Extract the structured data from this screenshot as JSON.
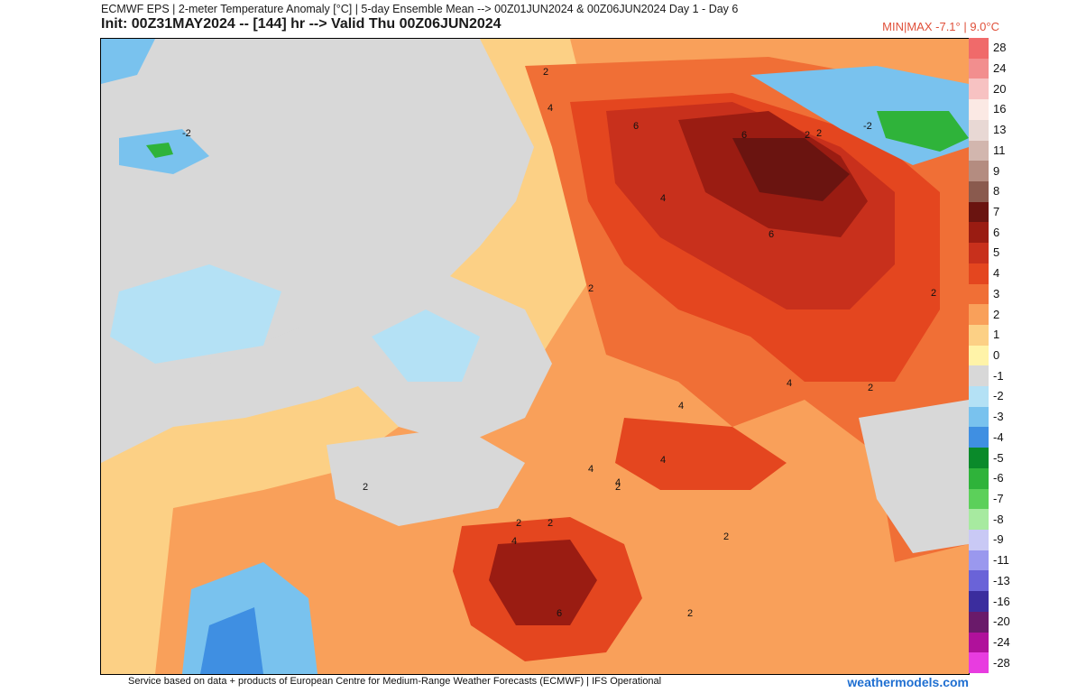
{
  "header": {
    "line1": "ECMWF EPS | 2-meter Temperature Anomaly [°C] | 5-day Ensemble Mean --> 00Z01JUN2024 & 00Z06JUN2024   Day 1 - Day 6",
    "line2": "Init: 00Z31MAY2024 -- [144] hr --> Valid Thu 00Z06JUN2024",
    "minmax": "MIN|MAX -7.1° | 9.0°C"
  },
  "legend": {
    "labels": [
      "28",
      "24",
      "20",
      "16",
      "13",
      "11",
      "9",
      "8",
      "7",
      "6",
      "5",
      "4",
      "3",
      "2",
      "1",
      "0",
      "-1",
      "-2",
      "-3",
      "-4",
      "-5",
      "-6",
      "-7",
      "-8",
      "-9",
      "-11",
      "-13",
      "-16",
      "-20",
      "-24",
      "-28"
    ],
    "colors": [
      "#f06a6a",
      "#f28e8e",
      "#f7c2c2",
      "#fbe9e4",
      "#e8d8d4",
      "#d2b6ae",
      "#b48c80",
      "#8a5a4e",
      "#6a1410",
      "#9a1c12",
      "#c8301c",
      "#e4461f",
      "#f06f36",
      "#f9a05a",
      "#fcd085",
      "#fff3a8",
      "#d8d8d8",
      "#b4e1f5",
      "#79c2ee",
      "#3f8fe2",
      "#0a8a2a",
      "#2fb33a",
      "#5cd05a",
      "#a7eaa0",
      "#c9c9f5",
      "#9a98ee",
      "#6a63d8",
      "#3b2d9e",
      "#6a1a6a",
      "#b0119b",
      "#e83ce0"
    ]
  },
  "map": {
    "contour_labels": [
      "2",
      "4",
      "6",
      "6",
      "4",
      "2",
      "4",
      "6",
      "-2",
      "2",
      "2",
      "4",
      "2",
      "2",
      "4",
      "2",
      "4",
      "6",
      "-2",
      "2",
      "2",
      "4",
      "2",
      "2",
      "4",
      "2"
    ]
  },
  "footer": {
    "credit": "Service based on data + products of European Centre for Medium-Range Weather Forecasts (ECMWF) | IFS Operational",
    "brand": "weathermodels.com"
  }
}
